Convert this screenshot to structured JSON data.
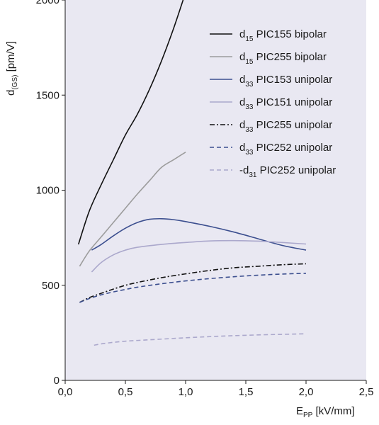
{
  "chart_data": {
    "type": "line",
    "xlabel": {
      "main": "E",
      "sub": "PP",
      "unit": " [kV/mm]"
    },
    "ylabel": {
      "main": "d",
      "sub": "(GS)",
      "unit": " [pm/V]"
    },
    "xlim": [
      0,
      2.5
    ],
    "ylim": [
      0,
      2000
    ],
    "xticks": [
      0,
      0.5,
      1,
      1.5,
      2,
      2.5
    ],
    "xtick_labels": [
      "0,0",
      "0,5",
      "1,0",
      "1,5",
      "2,0",
      "2,5"
    ],
    "yticks": [
      0,
      500,
      1000,
      1500,
      2000
    ],
    "ytick_labels": [
      "0",
      "500",
      "1000",
      "1500",
      "2000"
    ],
    "grid": false,
    "legend_position": "top-right",
    "background_color": "#e9e8f2",
    "series": [
      {
        "prefix": "d",
        "sub": "15",
        "suffix": " PIC155 bipolar",
        "color": "#111111",
        "dash": "solid",
        "x": [
          0.11,
          0.2,
          0.3,
          0.4,
          0.5,
          0.6,
          0.7,
          0.8,
          0.9,
          1.0
        ],
        "y": [
          715,
          890,
          1030,
          1160,
          1290,
          1400,
          1530,
          1680,
          1850,
          2040
        ]
      },
      {
        "prefix": "d",
        "sub": "15",
        "suffix": " PIC255 bipolar",
        "color": "#9c9c9c",
        "dash": "solid",
        "x": [
          0.12,
          0.2,
          0.3,
          0.4,
          0.5,
          0.6,
          0.7,
          0.8,
          0.9,
          1.0
        ],
        "y": [
          600,
          680,
          755,
          830,
          905,
          980,
          1050,
          1120,
          1160,
          1200
        ]
      },
      {
        "prefix": "d",
        "sub": "33",
        "suffix": " PIC153 unipolar",
        "color": "#3c4f8f",
        "dash": "solid",
        "x": [
          0.22,
          0.3,
          0.4,
          0.5,
          0.6,
          0.7,
          0.8,
          0.9,
          1.0,
          1.2,
          1.4,
          1.6,
          1.8,
          2.0
        ],
        "y": [
          685,
          715,
          760,
          800,
          830,
          847,
          850,
          845,
          835,
          810,
          780,
          745,
          710,
          685
        ]
      },
      {
        "prefix": "d",
        "sub": "33",
        "suffix": " PIC151 unipolar",
        "color": "#aba8cc",
        "dash": "solid",
        "x": [
          0.22,
          0.3,
          0.4,
          0.5,
          0.6,
          0.8,
          1.0,
          1.2,
          1.4,
          1.6,
          1.8,
          2.0
        ],
        "y": [
          570,
          620,
          660,
          685,
          700,
          715,
          725,
          733,
          735,
          732,
          725,
          717
        ]
      },
      {
        "prefix": "d",
        "sub": "33",
        "suffix": " PIC255 unipolar",
        "color": "#111111",
        "dash": "dashdot",
        "x": [
          0.12,
          0.2,
          0.3,
          0.4,
          0.5,
          0.6,
          0.8,
          1.0,
          1.2,
          1.4,
          1.6,
          1.8,
          2.0
        ],
        "y": [
          410,
          435,
          458,
          480,
          500,
          515,
          540,
          560,
          578,
          592,
          600,
          608,
          613
        ]
      },
      {
        "prefix": "d",
        "sub": "33",
        "suffix": " PIC252 unipolar",
        "color": "#3c4f8f",
        "dash": "dashed",
        "x": [
          0.12,
          0.2,
          0.3,
          0.4,
          0.5,
          0.6,
          0.8,
          1.0,
          1.2,
          1.4,
          1.6,
          1.8,
          2.0
        ],
        "y": [
          410,
          430,
          450,
          465,
          478,
          490,
          508,
          523,
          535,
          545,
          553,
          559,
          563
        ]
      },
      {
        "prefix": "-d",
        "sub": "31",
        "suffix": " PIC252 unipolar",
        "color": "#aba8cc",
        "dash": "dashed",
        "x": [
          0.24,
          0.3,
          0.4,
          0.5,
          0.6,
          0.8,
          1.0,
          1.2,
          1.4,
          1.6,
          1.8,
          2.0
        ],
        "y": [
          185,
          192,
          200,
          206,
          210,
          217,
          224,
          230,
          235,
          239,
          242,
          245
        ]
      }
    ]
  }
}
